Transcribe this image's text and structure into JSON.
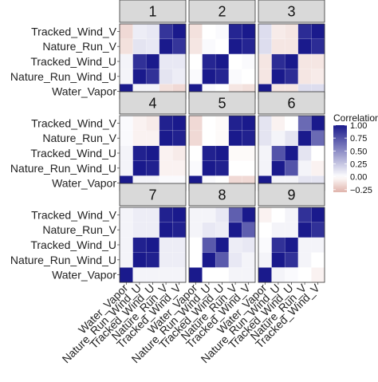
{
  "chart_data": {
    "type": "heatmap",
    "variables": [
      "Water_Vapor",
      "Nature_Run_Wind_U",
      "Tracked_Wind_U",
      "Nature_Run_V",
      "Tracked_Wind_V"
    ],
    "panels": [
      {
        "label": "1",
        "matrix": [
          [
            1.0,
            0.05,
            0.05,
            -0.12,
            -0.15
          ],
          [
            0.05,
            1.0,
            0.9,
            0.12,
            0.08
          ],
          [
            0.05,
            0.9,
            1.0,
            0.1,
            0.1
          ],
          [
            -0.12,
            0.12,
            0.1,
            1.0,
            0.88
          ],
          [
            -0.15,
            0.08,
            0.1,
            0.88,
            1.0
          ]
        ]
      },
      {
        "label": "2",
        "matrix": [
          [
            1.0,
            0.02,
            0.0,
            -0.1,
            -0.12
          ],
          [
            0.02,
            1.0,
            0.95,
            0.02,
            0.0
          ],
          [
            0.0,
            0.95,
            1.0,
            0.0,
            0.02
          ],
          [
            -0.1,
            0.02,
            0.0,
            1.0,
            0.95
          ],
          [
            -0.12,
            0.0,
            0.02,
            0.95,
            1.0
          ]
        ]
      },
      {
        "label": "3",
        "matrix": [
          [
            1.0,
            -0.1,
            -0.1,
            0.15,
            0.15
          ],
          [
            -0.1,
            1.0,
            0.92,
            -0.1,
            -0.08
          ],
          [
            -0.1,
            0.92,
            1.0,
            -0.1,
            -0.1
          ],
          [
            0.15,
            -0.1,
            -0.1,
            1.0,
            0.92
          ],
          [
            0.15,
            -0.08,
            -0.1,
            0.92,
            1.0
          ]
        ]
      },
      {
        "label": "4",
        "matrix": [
          [
            1.0,
            0.05,
            0.05,
            0.02,
            0.02
          ],
          [
            0.05,
            1.0,
            0.97,
            -0.05,
            -0.05
          ],
          [
            0.05,
            0.97,
            1.0,
            -0.05,
            -0.08
          ],
          [
            0.02,
            -0.05,
            -0.05,
            1.0,
            0.97
          ],
          [
            0.02,
            -0.05,
            -0.08,
            0.97,
            1.0
          ]
        ]
      },
      {
        "label": "5",
        "matrix": [
          [
            1.0,
            0.02,
            0.0,
            -0.15,
            -0.15
          ],
          [
            0.02,
            1.0,
            0.97,
            0.0,
            0.0
          ],
          [
            0.0,
            0.97,
            1.0,
            -0.02,
            -0.02
          ],
          [
            -0.15,
            0.0,
            -0.02,
            1.0,
            0.97
          ],
          [
            -0.15,
            0.0,
            -0.02,
            0.97,
            1.0
          ]
        ]
      },
      {
        "label": "6",
        "matrix": [
          [
            1.0,
            0.05,
            0.05,
            0.12,
            0.12
          ],
          [
            0.05,
            1.0,
            0.75,
            0.05,
            -0.05
          ],
          [
            0.05,
            0.75,
            1.0,
            0.12,
            0.0
          ],
          [
            0.12,
            0.05,
            0.12,
            1.0,
            0.65
          ],
          [
            0.12,
            -0.05,
            0.0,
            0.65,
            1.0
          ]
        ]
      },
      {
        "label": "7",
        "matrix": [
          [
            1.0,
            0.05,
            0.05,
            0.05,
            0.05
          ],
          [
            0.05,
            1.0,
            0.97,
            0.08,
            0.08
          ],
          [
            0.05,
            0.97,
            1.0,
            0.08,
            0.08
          ],
          [
            0.05,
            0.08,
            0.08,
            1.0,
            0.97
          ],
          [
            0.05,
            0.08,
            0.08,
            0.97,
            1.0
          ]
        ]
      },
      {
        "label": "8",
        "matrix": [
          [
            1.0,
            0.0,
            0.0,
            0.05,
            0.05
          ],
          [
            0.0,
            1.0,
            0.72,
            0.1,
            0.05
          ],
          [
            0.0,
            0.72,
            1.0,
            0.08,
            0.1
          ],
          [
            0.05,
            0.1,
            0.08,
            1.0,
            0.7
          ],
          [
            0.05,
            0.05,
            0.1,
            0.7,
            1.0
          ]
        ]
      },
      {
        "label": "9",
        "matrix": [
          [
            1.0,
            0.05,
            0.02,
            0.0,
            -0.05
          ],
          [
            0.05,
            1.0,
            0.9,
            0.05,
            0.0
          ],
          [
            0.02,
            0.9,
            1.0,
            0.05,
            0.05
          ],
          [
            0.0,
            0.05,
            0.05,
            1.0,
            0.9
          ],
          [
            -0.05,
            0.0,
            0.05,
            0.9,
            1.0
          ]
        ]
      }
    ],
    "legend": {
      "title": "Correlation",
      "ticks": [
        1.0,
        0.75,
        0.5,
        0.25,
        0.0,
        -0.25
      ],
      "tick_labels": [
        "1.00",
        "0.75",
        "0.50",
        "0.25",
        "0.00",
        "−0.25"
      ]
    },
    "colors": {
      "high": "#1a1a8c",
      "mid": "#ffffff",
      "low": "#e0b3ab",
      "strip_fill": "#d9d9d9",
      "strip_border": "#333333",
      "panel_border": "#333333"
    },
    "scale_range": [
      -0.3,
      1.0
    ]
  }
}
